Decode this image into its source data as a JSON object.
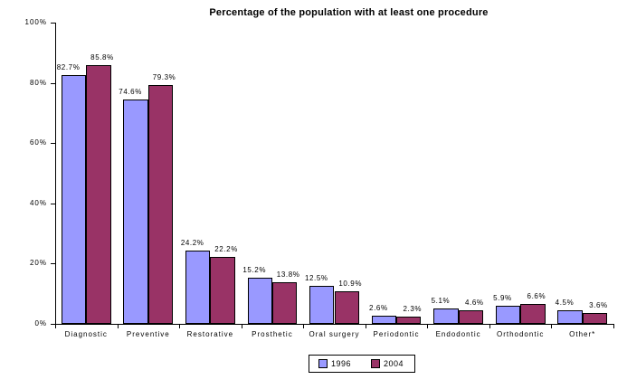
{
  "title": "Percentage of the population with at least one procedure",
  "chart_data": {
    "type": "bar",
    "title": "Percentage of the population with at least one procedure",
    "categories": [
      "Diagnostic",
      "Preventive",
      "Restorative",
      "Prosthetic",
      "Oral surgery",
      "Periodontic",
      "Endodontic",
      "Orthodontic",
      "Other*"
    ],
    "series": [
      {
        "name": "1996",
        "color": "#9999FF",
        "values": [
          82.7,
          74.6,
          24.2,
          15.2,
          12.5,
          2.6,
          5.1,
          5.9,
          4.5
        ]
      },
      {
        "name": "2004",
        "color": "#993366",
        "values": [
          85.8,
          79.3,
          22.2,
          13.8,
          10.9,
          2.3,
          4.6,
          6.6,
          3.6
        ]
      }
    ],
    "data_labels": [
      [
        "82.7%",
        "74.6%",
        "24.2%",
        "15.2%",
        "12.5%",
        "2.6%",
        "5.1%",
        "5.9%",
        "4.5%"
      ],
      [
        "85.8%",
        "79.3%",
        "22.2%",
        "13.8%",
        "10.9%",
        "2.3%",
        "4.6%",
        "6.6%",
        "3.6%"
      ]
    ],
    "xlabel": "",
    "ylabel": "",
    "ylim": [
      0,
      100
    ],
    "yticks": [
      {
        "value": 0,
        "label": "0%"
      },
      {
        "value": 20,
        "label": "20%"
      },
      {
        "value": 40,
        "label": "40%"
      },
      {
        "value": 60,
        "label": "60%"
      },
      {
        "value": 80,
        "label": "80%"
      },
      {
        "value": 100,
        "label": "100%"
      }
    ],
    "grid": false,
    "legend_position": "bottom",
    "bar_border_color": "#000000",
    "background_color": "#FFFFFF"
  },
  "legend": {
    "items": [
      {
        "label": "1996",
        "color": "#9999FF"
      },
      {
        "label": "2004",
        "color": "#993366"
      }
    ]
  }
}
